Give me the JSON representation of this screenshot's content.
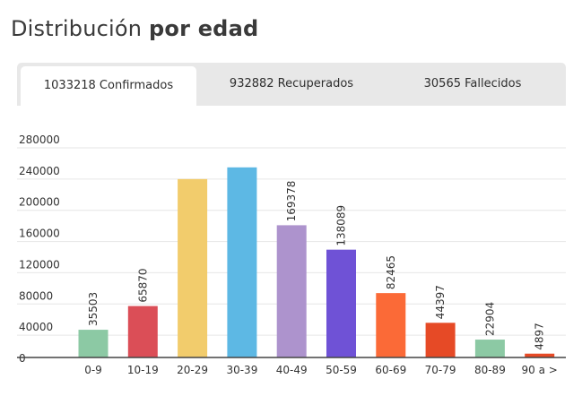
{
  "header": {
    "title_regular": "Distribución",
    "title_bold": "por edad"
  },
  "tabs": [
    {
      "label": "1033218 Confirmados",
      "active": true
    },
    {
      "label": "932882 Recuperados",
      "active": false
    },
    {
      "label": "30565 Fallecidos",
      "active": false
    }
  ],
  "chart_data": {
    "type": "bar",
    "categories": [
      "0-9",
      "10-19",
      "20-29",
      "30-39",
      "40-49",
      "50-59",
      "60-69",
      "70-79",
      "80-89",
      "90 a >"
    ],
    "values": [
      35503,
      65870,
      228500,
      243500,
      169378,
      138089,
      82465,
      44397,
      22904,
      4897
    ],
    "data_labels": [
      "35503",
      "65870",
      "",
      "",
      "169378",
      "138089",
      "82465",
      "44397",
      "22904",
      "4897"
    ],
    "colors": [
      "#8cc9a4",
      "#db4e57",
      "#f2cc6c",
      "#5db8e4",
      "#ad93cd",
      "#6f52d6",
      "#fb6a37",
      "#e64a26",
      "#8cc9a4",
      "#e64a26"
    ],
    "yticks": [
      0,
      40000,
      80000,
      120000,
      160000,
      200000,
      240000,
      280000
    ],
    "ylim": [
      0,
      280000
    ],
    "grid": true,
    "title": "",
    "xlabel": "",
    "ylabel": ""
  }
}
